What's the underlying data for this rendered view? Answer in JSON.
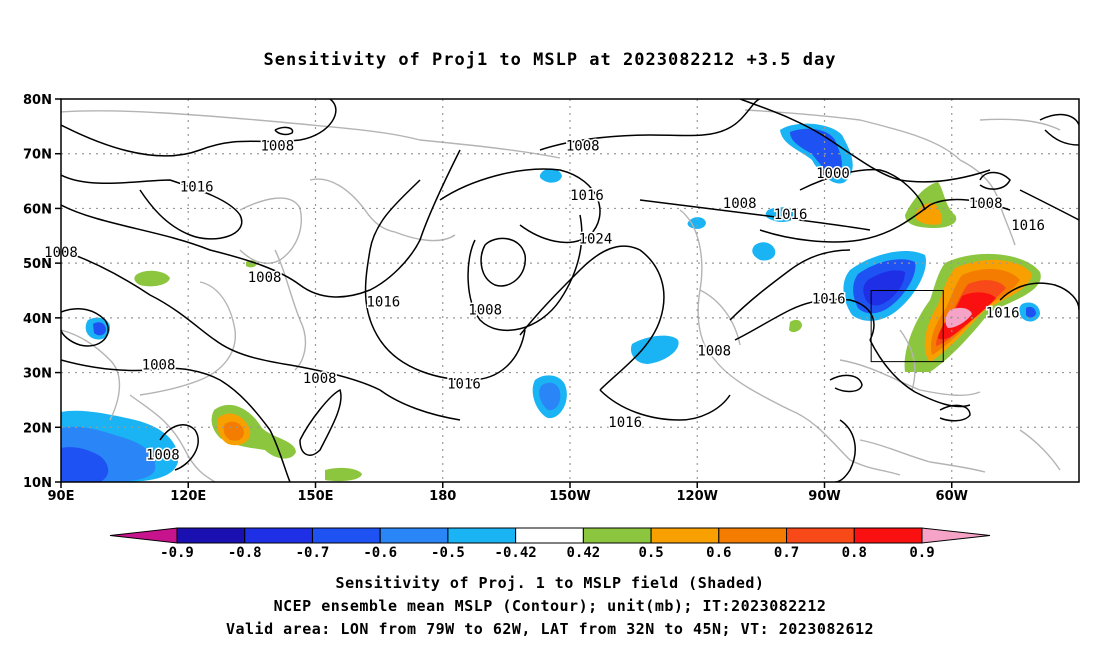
{
  "title": "Sensitivity of Proj1 to MSLP at 2023082212 +3.5 day",
  "map": {
    "lat_labels": [
      {
        "lat": 80,
        "text": "80N"
      },
      {
        "lat": 70,
        "text": "70N"
      },
      {
        "lat": 60,
        "text": "60N"
      },
      {
        "lat": 50,
        "text": "50N"
      },
      {
        "lat": 40,
        "text": "40N"
      },
      {
        "lat": 30,
        "text": "30N"
      },
      {
        "lat": 20,
        "text": "20N"
      },
      {
        "lat": 10,
        "text": "10N"
      }
    ],
    "lon_labels": [
      {
        "lon": 90,
        "text": "90E"
      },
      {
        "lon": 120,
        "text": "120E"
      },
      {
        "lon": 150,
        "text": "150E"
      },
      {
        "lon": 180,
        "text": "180"
      },
      {
        "lon": 210,
        "text": "150W"
      },
      {
        "lon": 240,
        "text": "120W"
      },
      {
        "lon": 270,
        "text": "90W"
      },
      {
        "lon": 300,
        "text": "60W"
      }
    ],
    "contour_labels": [
      {
        "text": "1008",
        "lon": 141,
        "lat": 71.5
      },
      {
        "text": "1016",
        "lon": 122,
        "lat": 64
      },
      {
        "text": "1008",
        "lon": 90,
        "lat": 52
      },
      {
        "text": "1008",
        "lon": 138,
        "lat": 47.5
      },
      {
        "text": "1016",
        "lon": 166,
        "lat": 43
      },
      {
        "text": "1008",
        "lon": 113,
        "lat": 31.5
      },
      {
        "text": "1008",
        "lon": 151,
        "lat": 29
      },
      {
        "text": "1008",
        "lon": 114,
        "lat": 15
      },
      {
        "text": "1008",
        "lon": 213,
        "lat": 71.5
      },
      {
        "text": "1016",
        "lon": 214,
        "lat": 62.5
      },
      {
        "text": "1024",
        "lon": 216,
        "lat": 54.5
      },
      {
        "text": "1008",
        "lon": 190,
        "lat": 41.5
      },
      {
        "text": "1016",
        "lon": 185,
        "lat": 28
      },
      {
        "text": "1016",
        "lon": 223,
        "lat": 21
      },
      {
        "text": "1008",
        "lon": 250,
        "lat": 61
      },
      {
        "text": "1016",
        "lon": 262,
        "lat": 59
      },
      {
        "text": "1000",
        "lon": 272,
        "lat": 66.5
      },
      {
        "text": "1008",
        "lon": 308,
        "lat": 61
      },
      {
        "text": "1016",
        "lon": 318,
        "lat": 57
      },
      {
        "text": "1016",
        "lon": 271,
        "lat": 43.5
      },
      {
        "text": "1016",
        "lon": 312,
        "lat": 41
      },
      {
        "text": "1008",
        "lon": 244,
        "lat": 34
      }
    ],
    "valid_box": {
      "lon_min": 281,
      "lon_max": 298,
      "lat_min": 32,
      "lat_max": 45
    }
  },
  "colorbar": {
    "labels": [
      "-0.9",
      "-0.8",
      "-0.7",
      "-0.6",
      "-0.5",
      "-0.42",
      "0.42",
      "0.5",
      "0.6",
      "0.7",
      "0.8",
      "0.9"
    ],
    "colors": [
      "#1a0fb0",
      "#1e2fe6",
      "#1f52f2",
      "#2a86f7",
      "#1ab4f5",
      "#ffffff",
      "#8cc63f",
      "#f8a000",
      "#f47c00",
      "#f84a18",
      "#fa1010"
    ],
    "low_end": "#c8148c",
    "high_end": "#f6a3c8"
  },
  "caption": {
    "line1": "Sensitivity of Proj. 1 to MSLP field (Shaded)",
    "line2": "NCEP ensemble mean MSLP (Contour); unit(mb); IT:2023082212",
    "line3": "Valid area: LON from 79W to 62W, LAT from 32N to 45N; VT: 2023082612"
  }
}
